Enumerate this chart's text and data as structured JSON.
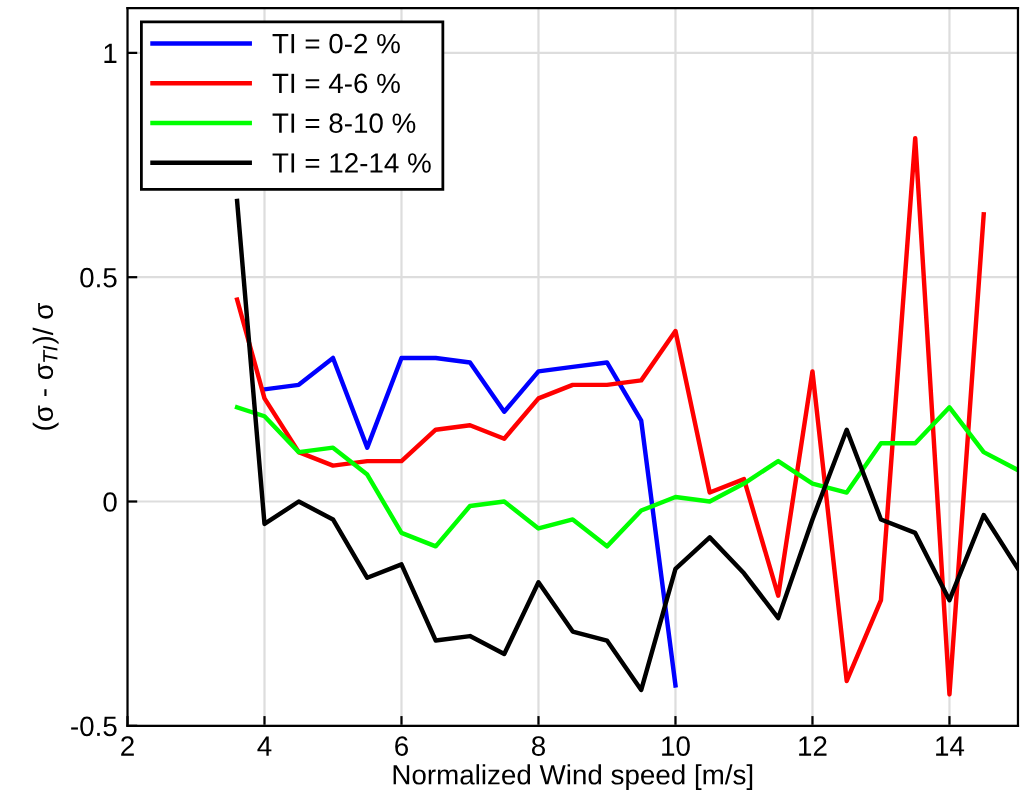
{
  "chart_data": {
    "type": "line",
    "xlabel": "Normalized Wind speed [m/s]",
    "ylabel": "(σ - σ$_{TI}$)/ σ",
    "xlim": [
      2,
      15
    ],
    "ylim": [
      -0.5,
      1.1
    ],
    "xticks": [
      2,
      4,
      6,
      8,
      10,
      12,
      14
    ],
    "yticks": [
      -0.5,
      0,
      0.5,
      1
    ],
    "grid": true,
    "legend": "top left",
    "line_style": "solid",
    "series": [
      {
        "name": "TI = 0-2 %",
        "color": "#0000ff",
        "x": [
          4,
          4.5,
          5,
          5.5,
          6,
          6.5,
          7,
          7.5,
          8,
          8.5,
          9,
          9.5,
          10
        ],
        "values": [
          0.25,
          0.26,
          0.32,
          0.12,
          0.32,
          0.32,
          0.31,
          0.2,
          0.29,
          0.3,
          0.31,
          0.18,
          -0.41
        ]
      },
      {
        "name": "TI = 4-6 %",
        "color": "#ff0000",
        "x": [
          3.6,
          4,
          4.5,
          5,
          5.5,
          6,
          6.5,
          7,
          7.5,
          8,
          8.5,
          9,
          9.5,
          10,
          10.5,
          11,
          11.5,
          12,
          12.5,
          13,
          13.5,
          14,
          14.5
        ],
        "values": [
          0.45,
          0.23,
          0.11,
          0.08,
          0.09,
          0.09,
          0.16,
          0.17,
          0.14,
          0.23,
          0.26,
          0.26,
          0.27,
          0.38,
          0.02,
          0.05,
          -0.21,
          0.29,
          -0.4,
          -0.22,
          0.81,
          -0.43,
          0.64
        ]
      },
      {
        "name": "TI = 8-10 %",
        "color": "#00ff00",
        "x": [
          3.6,
          4,
          4.5,
          5,
          5.5,
          6,
          6.5,
          7,
          7.5,
          8,
          8.5,
          9,
          9.5,
          10,
          10.5,
          11,
          11.5,
          12,
          12.5,
          13,
          13.5,
          14,
          14.5,
          15
        ],
        "values": [
          0.21,
          0.19,
          0.11,
          0.12,
          0.06,
          -0.07,
          -0.1,
          -0.01,
          0.0,
          -0.06,
          -0.04,
          -0.1,
          -0.02,
          0.01,
          0.0,
          0.04,
          0.09,
          0.04,
          0.02,
          0.13,
          0.13,
          0.21,
          0.11,
          0.07
        ]
      },
      {
        "name": "TI = 12-14 %",
        "color": "#000000",
        "x": [
          3.6,
          4,
          4.5,
          5,
          5.5,
          6,
          6.5,
          7,
          7.5,
          8,
          8.5,
          9,
          9.5,
          10,
          10.5,
          11,
          11.5,
          12,
          12.5,
          13,
          13.5,
          14,
          14.5,
          15
        ],
        "values": [
          0.67,
          -0.05,
          0.0,
          -0.04,
          -0.17,
          -0.14,
          -0.31,
          -0.3,
          -0.34,
          -0.18,
          -0.29,
          -0.31,
          -0.42,
          -0.15,
          -0.08,
          -0.16,
          -0.26,
          -0.04,
          0.16,
          -0.04,
          -0.07,
          -0.22,
          -0.03,
          -0.15
        ]
      }
    ]
  }
}
